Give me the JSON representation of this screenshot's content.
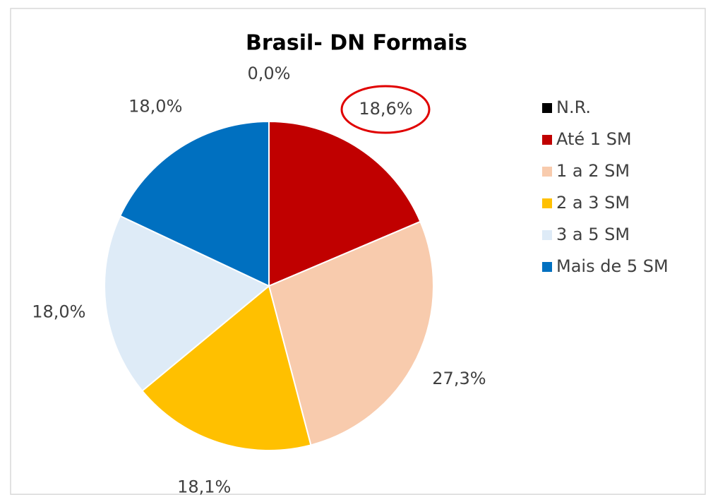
{
  "chart_data": {
    "type": "pie",
    "title": "Brasil- DN Formais",
    "categories": [
      "N.R.",
      "Até 1 SM",
      "1 a 2 SM",
      "2 a 3 SM",
      "3 a 5 SM",
      "Mais de 5 SM"
    ],
    "values": [
      0.0,
      18.6,
      27.3,
      18.1,
      18.0,
      18.0
    ],
    "value_labels": [
      "0,0%",
      "18,6%",
      "27,3%",
      "18,1%",
      "18,0%",
      "18,0%"
    ],
    "colors": [
      "#000000",
      "#c00000",
      "#f8cbad",
      "#ffc000",
      "#deebf7",
      "#0070c0"
    ],
    "legend": "right"
  }
}
